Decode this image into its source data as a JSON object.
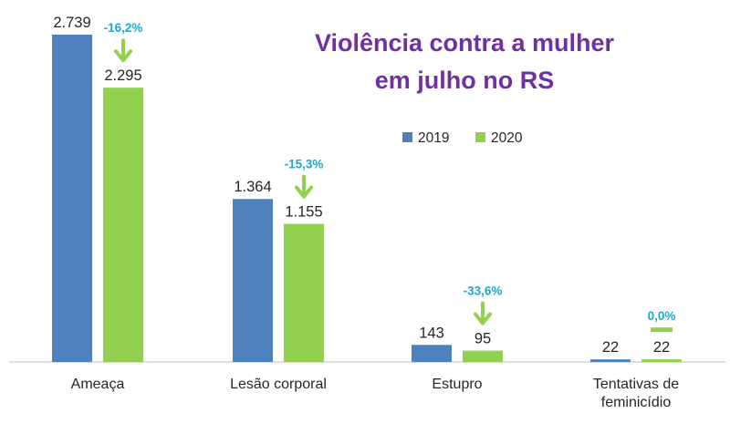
{
  "chart_data": {
    "type": "bar",
    "title_lines": [
      "Violência contra a mulher",
      "em julho no RS"
    ],
    "categories": [
      "Ameaça",
      "Lesão corporal",
      "Estupro",
      "Tentativas de feminicídio"
    ],
    "category_lines": [
      [
        "Ameaça"
      ],
      [
        "Lesão corporal"
      ],
      [
        "Estupro"
      ],
      [
        "Tentativas de",
        "feminicídio"
      ]
    ],
    "series": [
      {
        "name": "2019",
        "values": [
          2739,
          1364,
          143,
          22
        ],
        "labels": [
          "2.739",
          "1.364",
          "143",
          "22"
        ],
        "color": "#4F81BD"
      },
      {
        "name": "2020",
        "values": [
          2295,
          1155,
          95,
          22
        ],
        "labels": [
          "2.295",
          "1.155",
          "95",
          "22"
        ],
        "color": "#92D050"
      }
    ],
    "changes": [
      "-16,2%",
      "-15,3%",
      "-33,6%",
      "0,0%"
    ],
    "change_indicators": [
      "arrow-down",
      "arrow-down",
      "arrow-down",
      "flat-bar"
    ],
    "ylim": [
      0,
      2739
    ],
    "grid": false,
    "legend_position": "top-right",
    "xlabel": "",
    "ylabel": ""
  },
  "colors": {
    "title": "#7030A0",
    "change_label": "#1FA8C9",
    "indicator": "#92D050",
    "axis": "#BFBFBF",
    "text": "#262626"
  }
}
